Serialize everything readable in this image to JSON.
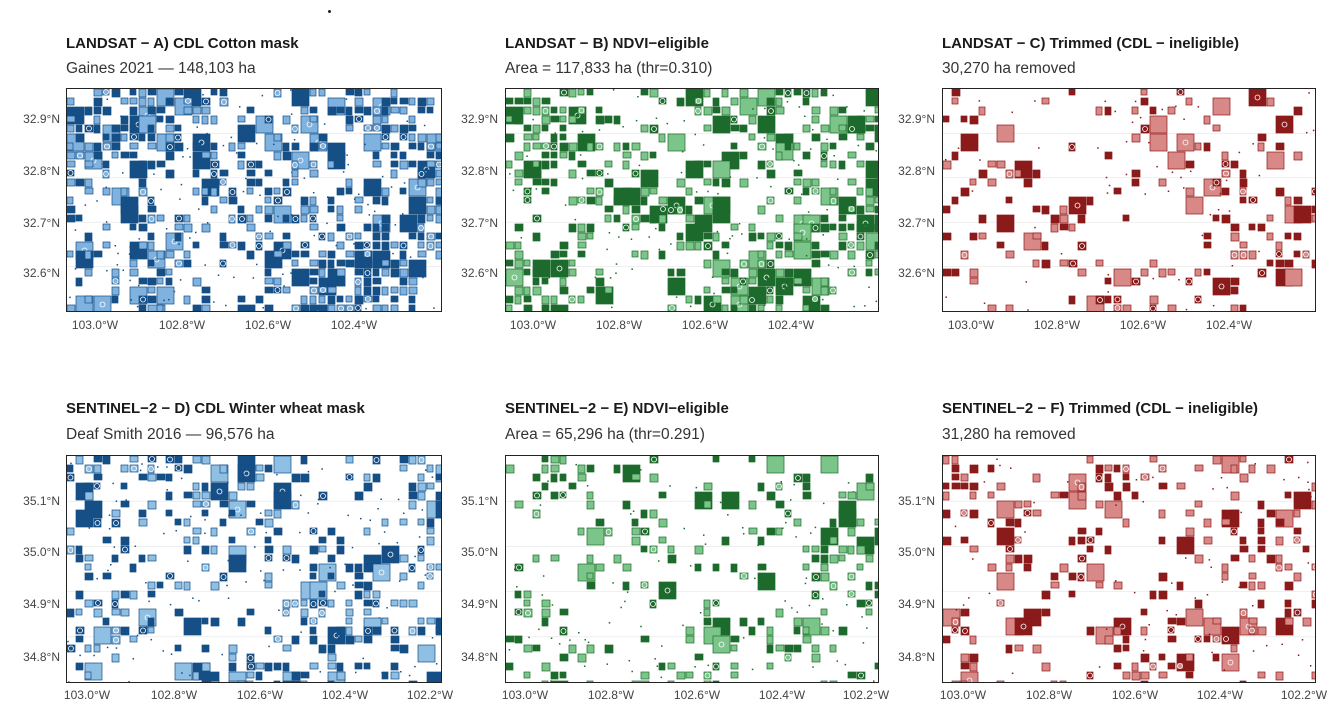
{
  "panels": [
    {
      "id": "A",
      "title": "LANDSAT − A) CDL Cotton mask",
      "subtitle": "Gaines 2021 — 148,103 ha",
      "y_ticks": [
        "32.9°N",
        "32.8°N",
        "32.7°N",
        "32.6°N"
      ],
      "x_ticks": [
        "103.0°W",
        "102.8°W",
        "102.6°W",
        "102.4°W"
      ],
      "fill_color": "#7fb2de",
      "stroke_color": "#154f86",
      "density": 0.78
    },
    {
      "id": "B",
      "title": "LANDSAT − B) NDVI−eligible",
      "subtitle": "Area = 117,833 ha (thr=0.310)",
      "y_ticks": [
        "32.9°N",
        "32.8°N",
        "32.7°N",
        "32.6°N"
      ],
      "x_ticks": [
        "103.0°W",
        "102.8°W",
        "102.6°W",
        "102.4°W"
      ],
      "fill_color": "#7bc58a",
      "stroke_color": "#1d6b2c",
      "density": 0.66
    },
    {
      "id": "C",
      "title": "LANDSAT − C) Trimmed (CDL − ineligible)",
      "subtitle": "30,270 ha removed",
      "y_ticks": [
        "32.9°N",
        "32.8°N",
        "32.7°N",
        "32.6°N"
      ],
      "x_ticks": [
        "103.0°W",
        "102.8°W",
        "102.6°W",
        "102.4°W"
      ],
      "fill_color": "#d98888",
      "stroke_color": "#8b1a1a",
      "density": 0.28
    },
    {
      "id": "D",
      "title": "SENTINEL−2 − D) CDL Winter wheat mask",
      "subtitle": "Deaf Smith 2016 — 96,576 ha",
      "y_ticks": [
        "35.1°N",
        "35.0°N",
        "34.9°N",
        "34.8°N"
      ],
      "x_ticks": [
        "103.0°W",
        "102.8°W",
        "102.6°W",
        "102.4°W",
        "102.2°W"
      ],
      "fill_color": "#8fbfe3",
      "stroke_color": "#154f86",
      "density": 0.55
    },
    {
      "id": "E",
      "title": "SENTINEL−2 − E) NDVI−eligible",
      "subtitle": "Area = 65,296 ha (thr=0.291)",
      "y_ticks": [
        "35.1°N",
        "35.0°N",
        "34.9°N",
        "34.8°N"
      ],
      "x_ticks": [
        "103.0°W",
        "102.8°W",
        "102.6°W",
        "102.4°W",
        "102.2°W"
      ],
      "fill_color": "#7bc58a",
      "stroke_color": "#1d6b2c",
      "density": 0.36
    },
    {
      "id": "F",
      "title": "SENTINEL−2 − F)  Trimmed (CDL − ineligible)",
      "subtitle": "31,280 ha removed",
      "y_ticks": [
        "35.1°N",
        "35.0°N",
        "34.9°N",
        "34.8°N"
      ],
      "x_ticks": [
        "103.0°W",
        "102.8°W",
        "102.6°W",
        "102.4°W",
        "102.2°W"
      ],
      "fill_color": "#d98888",
      "stroke_color": "#8b1a1a",
      "density": 0.34
    }
  ]
}
